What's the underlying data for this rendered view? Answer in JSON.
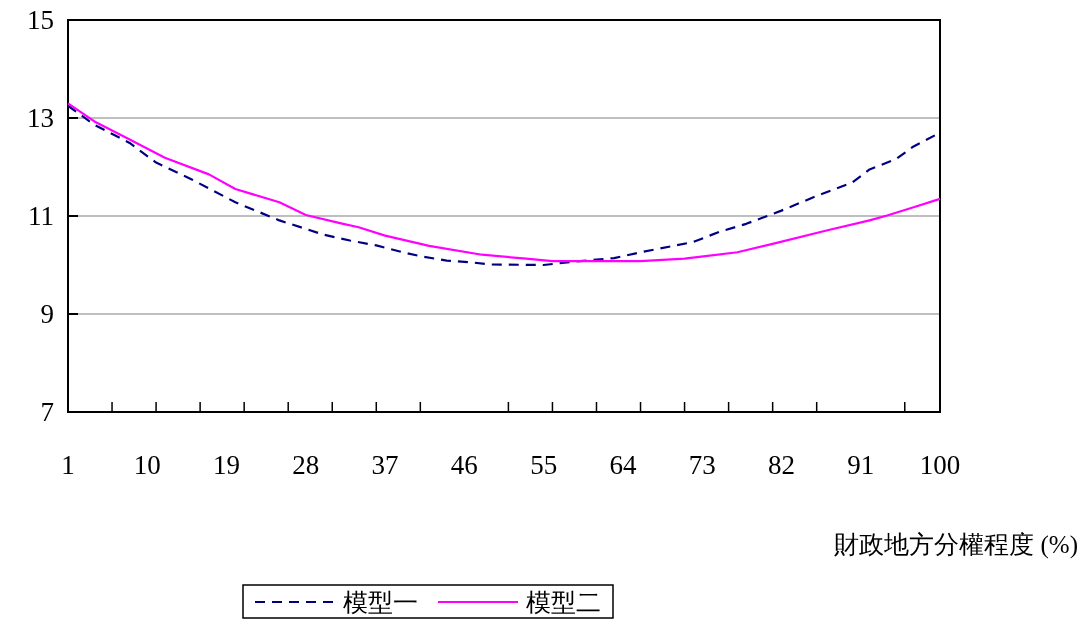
{
  "chart_data": {
    "type": "line",
    "xlabel": "財政地方分權程度 (%)",
    "xlim": [
      1,
      100
    ],
    "xticks": [
      1,
      {
        "value": 6,
        "label": null
      },
      10,
      {
        "value": 11,
        "label": null
      },
      {
        "value": 16,
        "label": null
      },
      19,
      {
        "value": 21,
        "label": null
      },
      {
        "value": 26,
        "label": null
      },
      28,
      {
        "value": 31,
        "label": null
      },
      {
        "value": 36,
        "label": null
      },
      37,
      {
        "value": 41,
        "label": null
      },
      46,
      {
        "value": 51,
        "label": null
      },
      55,
      {
        "value": 56,
        "label": null
      },
      {
        "value": 61,
        "label": null
      },
      64,
      {
        "value": 66,
        "label": null
      },
      {
        "value": 71,
        "label": null
      },
      73,
      {
        "value": 76,
        "label": null
      },
      {
        "value": 81,
        "label": null
      },
      82,
      {
        "value": 86,
        "label": null
      },
      91,
      {
        "value": 96,
        "label": null
      },
      100
    ],
    "ylim": [
      7,
      15
    ],
    "yticks": [
      7,
      9,
      11,
      13,
      15
    ],
    "grid": "y",
    "legend": "bottom",
    "series": [
      {
        "name": "模型一",
        "color": "#000080",
        "line_style": "dashed",
        "x": [
          1,
          4,
          8,
          11,
          15,
          20,
          25,
          30,
          33,
          36,
          39,
          41,
          44,
          47,
          49,
          55,
          58,
          61,
          63,
          66,
          68,
          72,
          75,
          78,
          82,
          86,
          90,
          92,
          95,
          97,
          100
        ],
        "values": [
          13.25,
          12.86,
          12.49,
          12.09,
          11.75,
          11.28,
          10.91,
          10.62,
          10.5,
          10.4,
          10.26,
          10.18,
          10.09,
          10.05,
          10.01,
          10.0,
          10.06,
          10.11,
          10.14,
          10.26,
          10.33,
          10.47,
          10.68,
          10.84,
          11.11,
          11.41,
          11.68,
          11.95,
          12.16,
          12.42,
          12.7
        ]
      },
      {
        "name": "模型二",
        "color": "#ff00ff",
        "line_style": "solid",
        "x": [
          1,
          4,
          8,
          12,
          17,
          20,
          25,
          28,
          32,
          34,
          37,
          42,
          48,
          53,
          56,
          66,
          71,
          77,
          81,
          87,
          92,
          94,
          97,
          100
        ],
        "values": [
          13.3,
          12.93,
          12.56,
          12.19,
          11.85,
          11.55,
          11.28,
          11.02,
          10.85,
          10.77,
          10.6,
          10.39,
          10.21,
          10.13,
          10.08,
          10.08,
          10.13,
          10.26,
          10.43,
          10.7,
          10.91,
          11.01,
          11.18,
          11.35
        ]
      }
    ]
  }
}
